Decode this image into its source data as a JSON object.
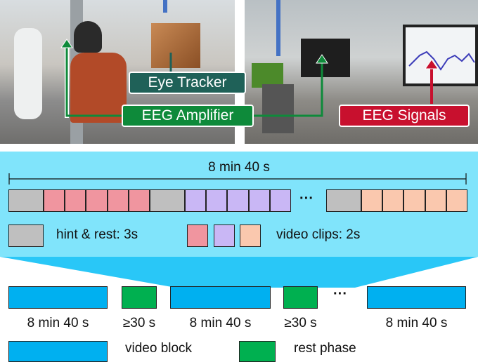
{
  "photos": {
    "labels": {
      "eye_tracker": "Eye Tracker",
      "eeg_amplifier": "EEG Amplifier",
      "eeg_signals": "EEG Signals"
    },
    "colors": {
      "eye_tracker": "#1f6158",
      "eeg_amplifier": "#0e8a3a",
      "eeg_signals": "#c8102e",
      "pointer": "#4472c4"
    }
  },
  "block_detail": {
    "duration": "8 min 40 s",
    "sequence": [
      "hint",
      "red",
      "red",
      "red",
      "red",
      "red",
      "hint",
      "purple",
      "purple",
      "purple",
      "purple",
      "purple",
      "...",
      "hint",
      "peach",
      "peach",
      "peach",
      "peach",
      "peach"
    ],
    "ellipsis": "···",
    "legend": {
      "hint": "hint & rest: 3s",
      "video": "video clips: 2s"
    },
    "colors": {
      "background": "#80e4fb",
      "hint": "#bfbfbf",
      "red": "#f0959f",
      "purple": "#c9b7f5",
      "peach": "#fac8ae"
    }
  },
  "session": {
    "items": [
      {
        "type": "video",
        "label": "8 min 40 s"
      },
      {
        "type": "rest",
        "label": "≥30 s"
      },
      {
        "type": "video",
        "label": "8 min 40 s"
      },
      {
        "type": "rest",
        "label": "≥30 s"
      },
      {
        "type": "video",
        "label": "8 min 40 s"
      }
    ],
    "ellipsis": "···",
    "legend": {
      "video": "video block",
      "rest": "rest phase"
    },
    "colors": {
      "video": "#00b0f0",
      "rest": "#00b050"
    }
  }
}
